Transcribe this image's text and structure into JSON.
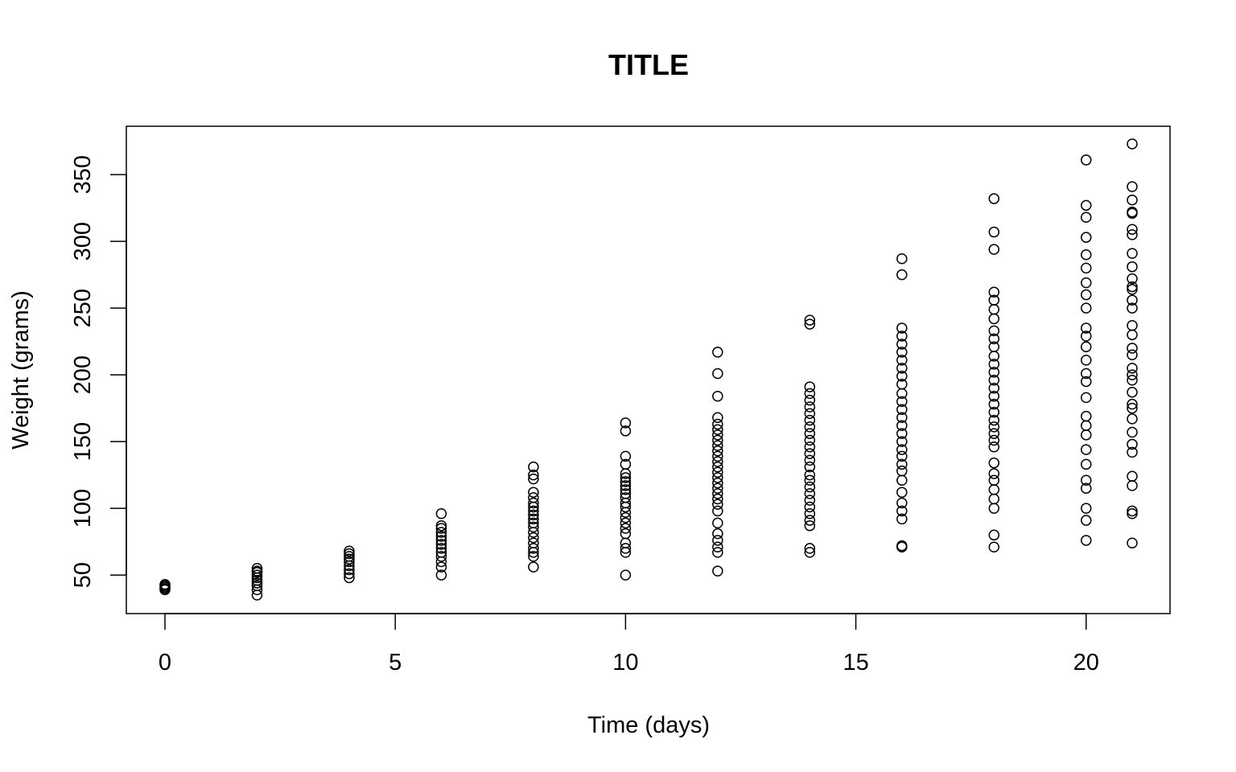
{
  "chart_data": {
    "type": "scatter",
    "title": "TITLE",
    "xlabel": "Time (days)",
    "ylabel": "Weight (grams)",
    "xlim": [
      0,
      21
    ],
    "ylim": [
      35,
      373
    ],
    "x_ticks": [
      0,
      5,
      10,
      15,
      20
    ],
    "y_ticks": [
      50,
      100,
      150,
      200,
      250,
      300,
      350
    ],
    "grid": false,
    "legend": "none",
    "marker": "open-circle",
    "colors": {
      "points": "#000000",
      "frame": "#000000",
      "background": "#ffffff"
    },
    "points": [
      {
        "x": 0,
        "y": 39
      },
      {
        "x": 0,
        "y": 40
      },
      {
        "x": 0,
        "y": 41
      },
      {
        "x": 0,
        "y": 42
      },
      {
        "x": 0,
        "y": 43
      },
      {
        "x": 2,
        "y": 35
      },
      {
        "x": 2,
        "y": 39
      },
      {
        "x": 2,
        "y": 42
      },
      {
        "x": 2,
        "y": 44
      },
      {
        "x": 2,
        "y": 46
      },
      {
        "x": 2,
        "y": 48
      },
      {
        "x": 2,
        "y": 50
      },
      {
        "x": 2,
        "y": 52
      },
      {
        "x": 2,
        "y": 53
      },
      {
        "x": 2,
        "y": 55
      },
      {
        "x": 4,
        "y": 48
      },
      {
        "x": 4,
        "y": 51
      },
      {
        "x": 4,
        "y": 54
      },
      {
        "x": 4,
        "y": 57
      },
      {
        "x": 4,
        "y": 60
      },
      {
        "x": 4,
        "y": 62
      },
      {
        "x": 4,
        "y": 64
      },
      {
        "x": 4,
        "y": 66
      },
      {
        "x": 4,
        "y": 68
      },
      {
        "x": 6,
        "y": 50
      },
      {
        "x": 6,
        "y": 56
      },
      {
        "x": 6,
        "y": 60
      },
      {
        "x": 6,
        "y": 64
      },
      {
        "x": 6,
        "y": 67
      },
      {
        "x": 6,
        "y": 70
      },
      {
        "x": 6,
        "y": 73
      },
      {
        "x": 6,
        "y": 76
      },
      {
        "x": 6,
        "y": 79
      },
      {
        "x": 6,
        "y": 82
      },
      {
        "x": 6,
        "y": 85
      },
      {
        "x": 6,
        "y": 87
      },
      {
        "x": 6,
        "y": 96
      },
      {
        "x": 8,
        "y": 56
      },
      {
        "x": 8,
        "y": 64
      },
      {
        "x": 8,
        "y": 67
      },
      {
        "x": 8,
        "y": 70
      },
      {
        "x": 8,
        "y": 74
      },
      {
        "x": 8,
        "y": 78
      },
      {
        "x": 8,
        "y": 82
      },
      {
        "x": 8,
        "y": 86
      },
      {
        "x": 8,
        "y": 89
      },
      {
        "x": 8,
        "y": 92
      },
      {
        "x": 8,
        "y": 95
      },
      {
        "x": 8,
        "y": 98
      },
      {
        "x": 8,
        "y": 101
      },
      {
        "x": 8,
        "y": 104
      },
      {
        "x": 8,
        "y": 108
      },
      {
        "x": 8,
        "y": 112
      },
      {
        "x": 8,
        "y": 122
      },
      {
        "x": 8,
        "y": 125
      },
      {
        "x": 8,
        "y": 131
      },
      {
        "x": 10,
        "y": 50
      },
      {
        "x": 10,
        "y": 67
      },
      {
        "x": 10,
        "y": 70
      },
      {
        "x": 10,
        "y": 74
      },
      {
        "x": 10,
        "y": 81
      },
      {
        "x": 10,
        "y": 85
      },
      {
        "x": 10,
        "y": 89
      },
      {
        "x": 10,
        "y": 93
      },
      {
        "x": 10,
        "y": 97
      },
      {
        "x": 10,
        "y": 101
      },
      {
        "x": 10,
        "y": 104
      },
      {
        "x": 10,
        "y": 108
      },
      {
        "x": 10,
        "y": 111
      },
      {
        "x": 10,
        "y": 114
      },
      {
        "x": 10,
        "y": 117
      },
      {
        "x": 10,
        "y": 120
      },
      {
        "x": 10,
        "y": 123
      },
      {
        "x": 10,
        "y": 126
      },
      {
        "x": 10,
        "y": 133
      },
      {
        "x": 10,
        "y": 139
      },
      {
        "x": 10,
        "y": 158
      },
      {
        "x": 10,
        "y": 164
      },
      {
        "x": 12,
        "y": 53
      },
      {
        "x": 12,
        "y": 67
      },
      {
        "x": 12,
        "y": 71
      },
      {
        "x": 12,
        "y": 76
      },
      {
        "x": 12,
        "y": 81
      },
      {
        "x": 12,
        "y": 89
      },
      {
        "x": 12,
        "y": 98
      },
      {
        "x": 12,
        "y": 103
      },
      {
        "x": 12,
        "y": 107
      },
      {
        "x": 12,
        "y": 111
      },
      {
        "x": 12,
        "y": 115
      },
      {
        "x": 12,
        "y": 119
      },
      {
        "x": 12,
        "y": 123
      },
      {
        "x": 12,
        "y": 127
      },
      {
        "x": 12,
        "y": 131
      },
      {
        "x": 12,
        "y": 135
      },
      {
        "x": 12,
        "y": 139
      },
      {
        "x": 12,
        "y": 143
      },
      {
        "x": 12,
        "y": 147
      },
      {
        "x": 12,
        "y": 151
      },
      {
        "x": 12,
        "y": 155
      },
      {
        "x": 12,
        "y": 159
      },
      {
        "x": 12,
        "y": 163
      },
      {
        "x": 12,
        "y": 168
      },
      {
        "x": 12,
        "y": 184
      },
      {
        "x": 12,
        "y": 201
      },
      {
        "x": 12,
        "y": 217
      },
      {
        "x": 14,
        "y": 67
      },
      {
        "x": 14,
        "y": 70
      },
      {
        "x": 14,
        "y": 87
      },
      {
        "x": 14,
        "y": 91
      },
      {
        "x": 14,
        "y": 96
      },
      {
        "x": 14,
        "y": 101
      },
      {
        "x": 14,
        "y": 106
      },
      {
        "x": 14,
        "y": 111
      },
      {
        "x": 14,
        "y": 116
      },
      {
        "x": 14,
        "y": 121
      },
      {
        "x": 14,
        "y": 125
      },
      {
        "x": 14,
        "y": 131
      },
      {
        "x": 14,
        "y": 136
      },
      {
        "x": 14,
        "y": 141
      },
      {
        "x": 14,
        "y": 146
      },
      {
        "x": 14,
        "y": 151
      },
      {
        "x": 14,
        "y": 156
      },
      {
        "x": 14,
        "y": 161
      },
      {
        "x": 14,
        "y": 166
      },
      {
        "x": 14,
        "y": 171
      },
      {
        "x": 14,
        "y": 176
      },
      {
        "x": 14,
        "y": 181
      },
      {
        "x": 14,
        "y": 186
      },
      {
        "x": 14,
        "y": 191
      },
      {
        "x": 14,
        "y": 238
      },
      {
        "x": 14,
        "y": 241
      },
      {
        "x": 16,
        "y": 71
      },
      {
        "x": 16,
        "y": 72
      },
      {
        "x": 16,
        "y": 92
      },
      {
        "x": 16,
        "y": 98
      },
      {
        "x": 16,
        "y": 104
      },
      {
        "x": 16,
        "y": 112
      },
      {
        "x": 16,
        "y": 121
      },
      {
        "x": 16,
        "y": 128
      },
      {
        "x": 16,
        "y": 133
      },
      {
        "x": 16,
        "y": 139
      },
      {
        "x": 16,
        "y": 144
      },
      {
        "x": 16,
        "y": 150
      },
      {
        "x": 16,
        "y": 156
      },
      {
        "x": 16,
        "y": 162
      },
      {
        "x": 16,
        "y": 168
      },
      {
        "x": 16,
        "y": 174
      },
      {
        "x": 16,
        "y": 180
      },
      {
        "x": 16,
        "y": 186
      },
      {
        "x": 16,
        "y": 193
      },
      {
        "x": 16,
        "y": 199
      },
      {
        "x": 16,
        "y": 205
      },
      {
        "x": 16,
        "y": 211
      },
      {
        "x": 16,
        "y": 217
      },
      {
        "x": 16,
        "y": 223
      },
      {
        "x": 16,
        "y": 229
      },
      {
        "x": 16,
        "y": 235
      },
      {
        "x": 16,
        "y": 275
      },
      {
        "x": 16,
        "y": 287
      },
      {
        "x": 18,
        "y": 71
      },
      {
        "x": 18,
        "y": 80
      },
      {
        "x": 18,
        "y": 100
      },
      {
        "x": 18,
        "y": 107
      },
      {
        "x": 18,
        "y": 114
      },
      {
        "x": 18,
        "y": 121
      },
      {
        "x": 18,
        "y": 126
      },
      {
        "x": 18,
        "y": 134
      },
      {
        "x": 18,
        "y": 146
      },
      {
        "x": 18,
        "y": 151
      },
      {
        "x": 18,
        "y": 156
      },
      {
        "x": 18,
        "y": 161
      },
      {
        "x": 18,
        "y": 166
      },
      {
        "x": 18,
        "y": 172
      },
      {
        "x": 18,
        "y": 178
      },
      {
        "x": 18,
        "y": 184
      },
      {
        "x": 18,
        "y": 190
      },
      {
        "x": 18,
        "y": 196
      },
      {
        "x": 18,
        "y": 202
      },
      {
        "x": 18,
        "y": 208
      },
      {
        "x": 18,
        "y": 214
      },
      {
        "x": 18,
        "y": 221
      },
      {
        "x": 18,
        "y": 227
      },
      {
        "x": 18,
        "y": 233
      },
      {
        "x": 18,
        "y": 242
      },
      {
        "x": 18,
        "y": 249
      },
      {
        "x": 18,
        "y": 256
      },
      {
        "x": 18,
        "y": 262
      },
      {
        "x": 18,
        "y": 294
      },
      {
        "x": 18,
        "y": 307
      },
      {
        "x": 18,
        "y": 332
      },
      {
        "x": 20,
        "y": 76
      },
      {
        "x": 20,
        "y": 91
      },
      {
        "x": 20,
        "y": 100
      },
      {
        "x": 20,
        "y": 115
      },
      {
        "x": 20,
        "y": 121
      },
      {
        "x": 20,
        "y": 133
      },
      {
        "x": 20,
        "y": 144
      },
      {
        "x": 20,
        "y": 155
      },
      {
        "x": 20,
        "y": 162
      },
      {
        "x": 20,
        "y": 169
      },
      {
        "x": 20,
        "y": 183
      },
      {
        "x": 20,
        "y": 195
      },
      {
        "x": 20,
        "y": 201
      },
      {
        "x": 20,
        "y": 211
      },
      {
        "x": 20,
        "y": 221
      },
      {
        "x": 20,
        "y": 229
      },
      {
        "x": 20,
        "y": 235
      },
      {
        "x": 20,
        "y": 250
      },
      {
        "x": 20,
        "y": 260
      },
      {
        "x": 20,
        "y": 269
      },
      {
        "x": 20,
        "y": 280
      },
      {
        "x": 20,
        "y": 290
      },
      {
        "x": 20,
        "y": 303
      },
      {
        "x": 20,
        "y": 318
      },
      {
        "x": 20,
        "y": 327
      },
      {
        "x": 20,
        "y": 361
      },
      {
        "x": 21,
        "y": 74
      },
      {
        "x": 21,
        "y": 96
      },
      {
        "x": 21,
        "y": 98
      },
      {
        "x": 21,
        "y": 117
      },
      {
        "x": 21,
        "y": 124
      },
      {
        "x": 21,
        "y": 142
      },
      {
        "x": 21,
        "y": 148
      },
      {
        "x": 21,
        "y": 157
      },
      {
        "x": 21,
        "y": 167
      },
      {
        "x": 21,
        "y": 175
      },
      {
        "x": 21,
        "y": 178
      },
      {
        "x": 21,
        "y": 187
      },
      {
        "x": 21,
        "y": 196
      },
      {
        "x": 21,
        "y": 200
      },
      {
        "x": 21,
        "y": 205
      },
      {
        "x": 21,
        "y": 215
      },
      {
        "x": 21,
        "y": 220
      },
      {
        "x": 21,
        "y": 230
      },
      {
        "x": 21,
        "y": 237
      },
      {
        "x": 21,
        "y": 250
      },
      {
        "x": 21,
        "y": 256
      },
      {
        "x": 21,
        "y": 264
      },
      {
        "x": 21,
        "y": 266
      },
      {
        "x": 21,
        "y": 272
      },
      {
        "x": 21,
        "y": 281
      },
      {
        "x": 21,
        "y": 291
      },
      {
        "x": 21,
        "y": 305
      },
      {
        "x": 21,
        "y": 309
      },
      {
        "x": 21,
        "y": 321
      },
      {
        "x": 21,
        "y": 322
      },
      {
        "x": 21,
        "y": 331
      },
      {
        "x": 21,
        "y": 341
      },
      {
        "x": 21,
        "y": 373
      }
    ]
  }
}
